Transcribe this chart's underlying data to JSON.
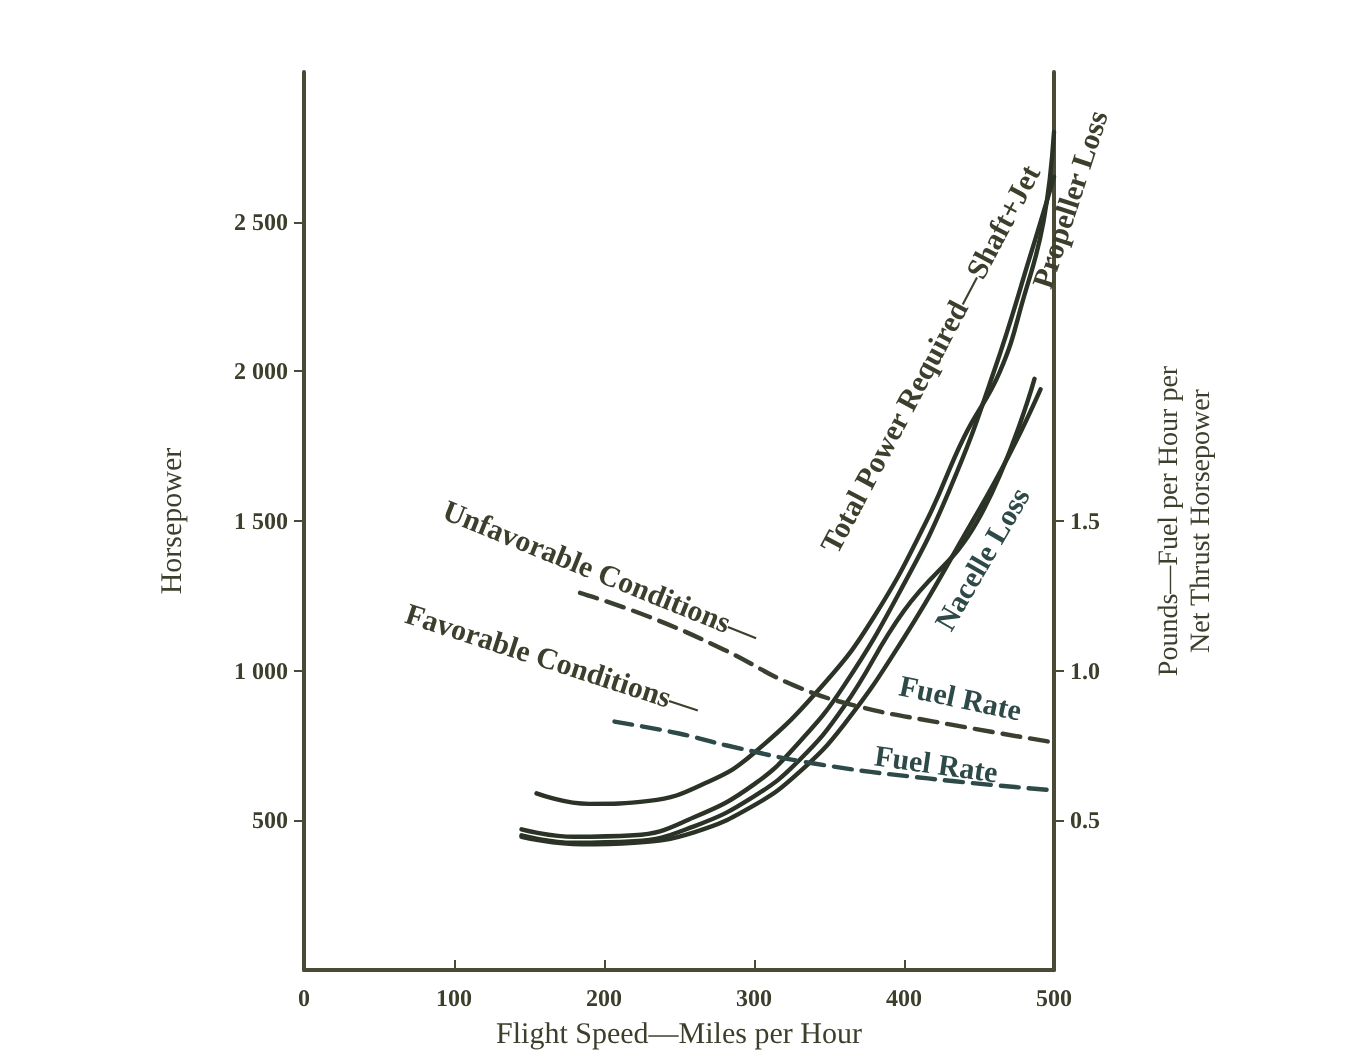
{
  "chart_data": {
    "type": "line",
    "xlabel": "Flight Speed—Miles per Hour",
    "ylabel": "Horsepower",
    "y2label": "Pounds—Fuel per Hour per\nNet Thrust Horsepower",
    "xlim": [
      0,
      500
    ],
    "xticks": [
      0,
      100,
      200,
      300,
      400,
      500
    ],
    "ylim": [
      0,
      3000
    ],
    "yticks": [
      500,
      {
        "value": 1000,
        "label": "1 000"
      },
      {
        "value": 1500,
        "label": "1 500"
      },
      {
        "value": 2000,
        "label": "2 000"
      },
      {
        "value": 2500,
        "label": "2 500"
      }
    ],
    "y2lim": [
      0,
      3
    ],
    "y2ticks": [
      0.5,
      {
        "value": 1,
        "label": "1.0"
      },
      1.5
    ],
    "marker": "none",
    "series": [
      {
        "color": "#2b3326",
        "line_style": "solid",
        "x": [
          155,
          190,
          230,
          270,
          300,
          347,
          380,
          415,
          440,
          464,
          480,
          493,
          500
        ],
        "values": [
          590,
          555,
          565,
          630,
          725,
          958,
          1180,
          1500,
          1780,
          2000,
          2250,
          2500,
          2800
        ]
      },
      {
        "color": "#2b3326",
        "line_style": "solid",
        "x": [
          145,
          180,
          220,
          260,
          300,
          330,
          360,
          400,
          430,
          460,
          485,
          500
        ],
        "values": [
          470,
          445,
          450,
          510,
          620,
          760,
          950,
          1290,
          1600,
          2000,
          2400,
          2650
        ]
      },
      {
        "color": "#2b3326",
        "line_style": "solid",
        "x": [
          145,
          180,
          220,
          260,
          300,
          330,
          360,
          400,
          449,
          487
        ],
        "values": [
          450,
          425,
          430,
          480,
          580,
          700,
          880,
          1200,
          1500,
          1975
        ]
      },
      {
        "color": "#2b3326",
        "line_style": "solid",
        "x": [
          145,
          185,
          220,
          260,
          300,
          330,
          360,
          400,
          440,
          470,
          491
        ],
        "values": [
          445,
          420,
          425,
          460,
          550,
          660,
          820,
          1110,
          1450,
          1720,
          1940
        ]
      },
      {
        "color": "#3a4030",
        "line_style": "dashed",
        "axis": "y2",
        "x": [
          184,
          230,
          280,
          327,
          370,
          420,
          500
        ],
        "values": [
          1.26,
          1.18,
          1.07,
          0.95,
          0.88,
          0.83,
          0.76
        ]
      },
      {
        "color": "#2e4a48",
        "line_style": "dashed",
        "axis": "y2",
        "x": [
          207,
          250,
          282,
          340,
          416,
          500
        ],
        "values": [
          0.83,
          0.79,
          0.75,
          0.69,
          0.64,
          0.6
        ]
      }
    ],
    "annotations": [
      "Unfavorable Conditions—",
      "Fuel Rate",
      "Favorable Conditions—",
      "Fuel Rate",
      "Total Power Required—Shaft+Jet",
      "Propeller Loss",
      "Nacelle Loss"
    ]
  }
}
